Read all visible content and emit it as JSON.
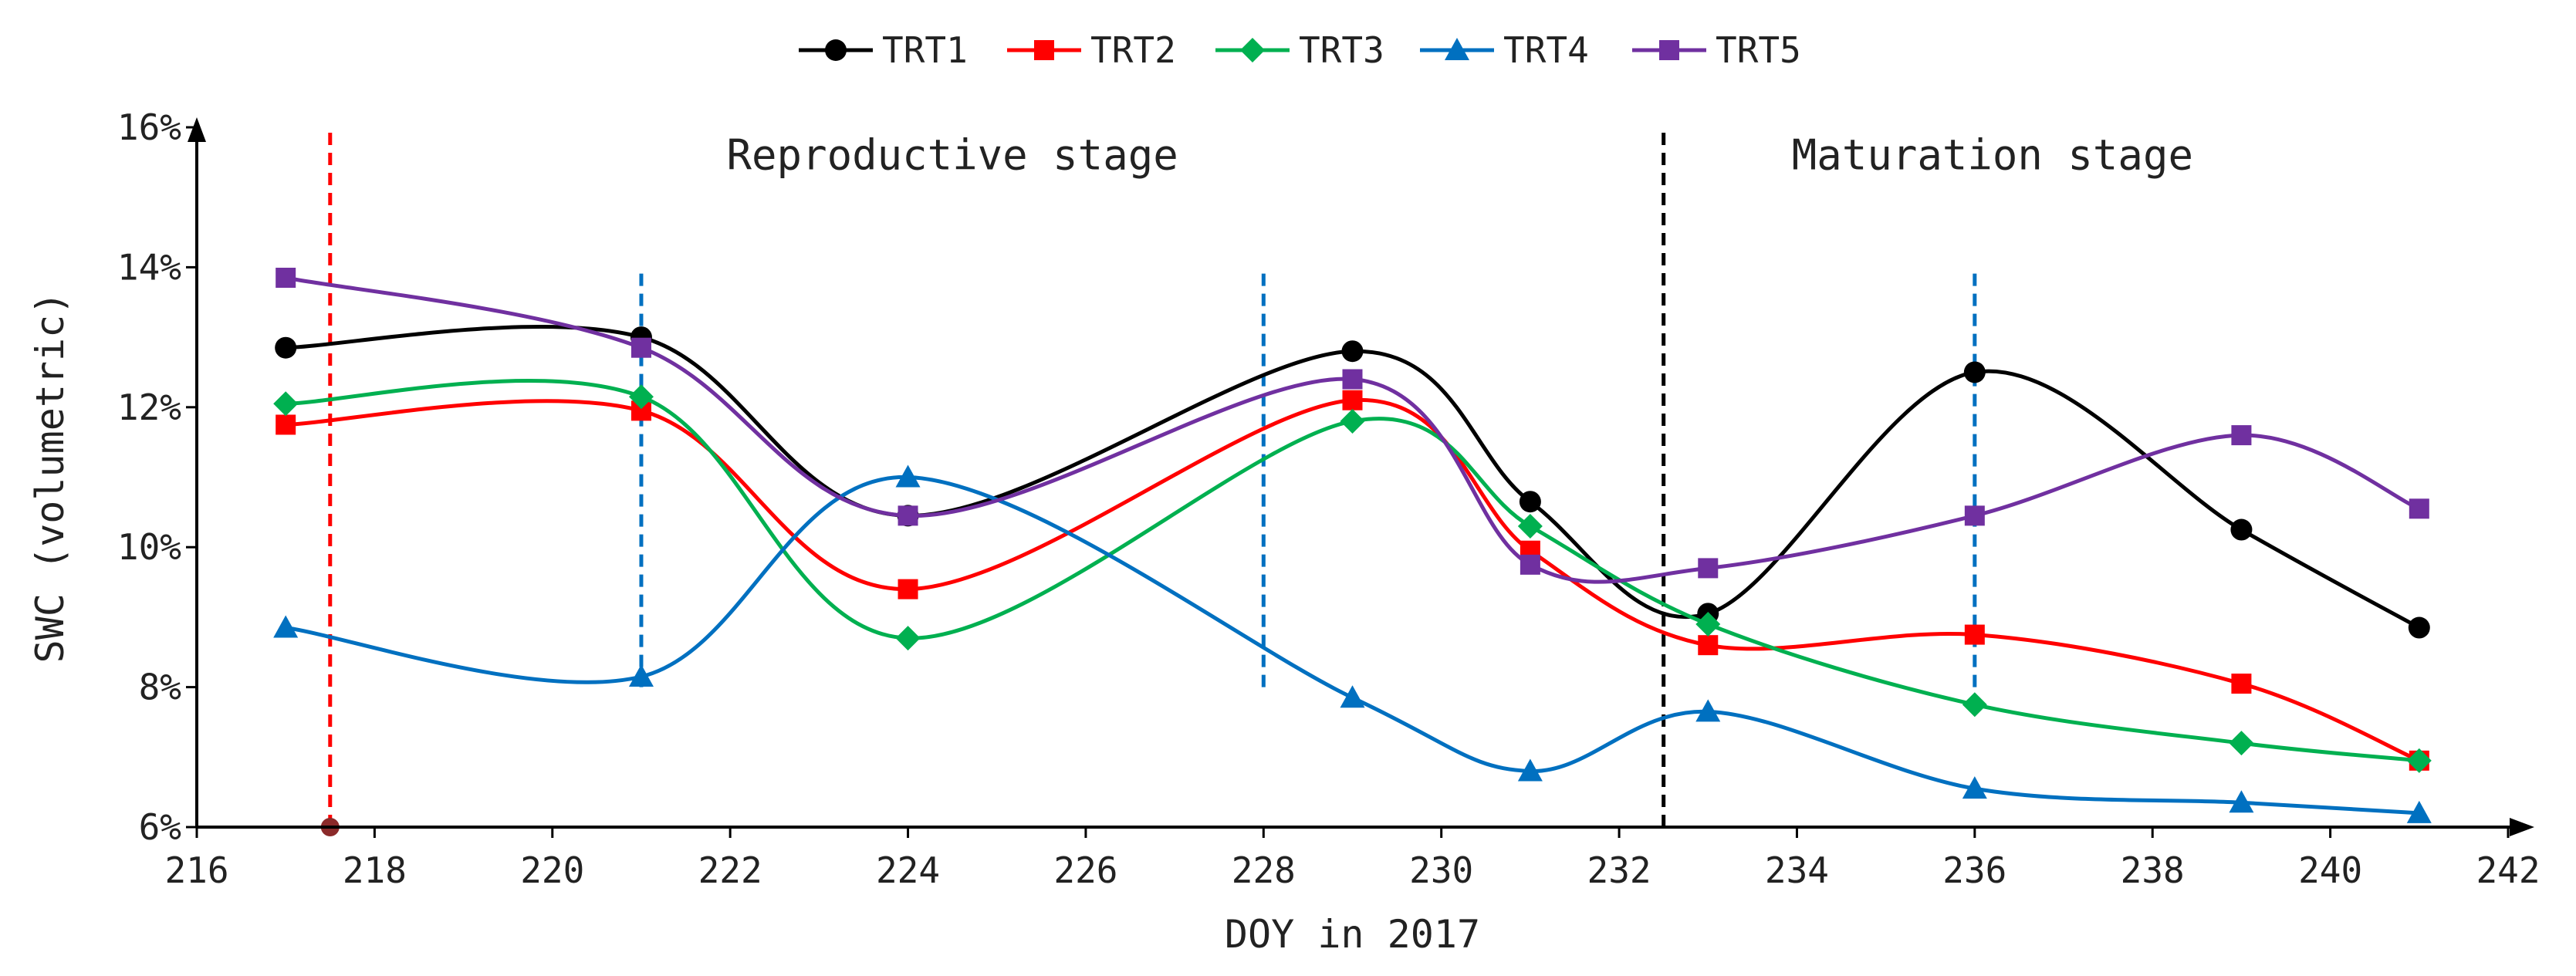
{
  "chart_data": {
    "type": "line",
    "title": "",
    "xlabel": "DOY in 2017",
    "ylabel": "SWC (volumetric)",
    "xlim": [
      216,
      242
    ],
    "ylim": [
      6,
      16
    ],
    "x_ticks": [
      216,
      218,
      220,
      222,
      224,
      226,
      228,
      230,
      232,
      234,
      236,
      238,
      240,
      242
    ],
    "x_tick_labels": [
      "216",
      "218",
      "220",
      "222",
      "224",
      "226",
      "228",
      "230",
      "232",
      "234",
      "236",
      "238",
      "240",
      "242"
    ],
    "y_ticks": [
      6,
      8,
      10,
      12,
      14,
      16
    ],
    "y_tick_labels": [
      "6%",
      "8%",
      "10%",
      "12%",
      "14%",
      "16%"
    ],
    "grid": false,
    "legend_position": "top-center",
    "x": [
      217,
      221,
      224,
      229,
      231,
      233,
      236,
      239,
      241
    ],
    "series": [
      {
        "name": "TRT1",
        "color": "#000000",
        "marker": "circle",
        "values": [
          12.85,
          13.0,
          10.45,
          12.8,
          10.65,
          9.05,
          12.5,
          10.25,
          8.85
        ]
      },
      {
        "name": "TRT2",
        "color": "#ff0000",
        "marker": "square",
        "values": [
          11.75,
          11.95,
          9.4,
          12.1,
          9.95,
          8.6,
          8.75,
          8.05,
          6.95
        ]
      },
      {
        "name": "TRT3",
        "color": "#00b050",
        "marker": "diamond",
        "values": [
          12.05,
          12.15,
          8.7,
          11.8,
          10.3,
          8.9,
          7.75,
          7.2,
          6.95
        ]
      },
      {
        "name": "TRT4",
        "color": "#0070c0",
        "marker": "triangle",
        "values": [
          8.85,
          8.15,
          11.0,
          7.85,
          6.8,
          7.65,
          6.55,
          6.35,
          6.2
        ]
      },
      {
        "name": "TRT5",
        "color": "#7030a0",
        "marker": "square",
        "values": [
          13.85,
          12.85,
          10.45,
          12.4,
          9.75,
          9.7,
          10.45,
          11.6,
          10.55
        ]
      }
    ],
    "annotations": [
      {
        "type": "text",
        "text": "Reproductive stage",
        "x": 224.5,
        "y": 15.6
      },
      {
        "type": "text",
        "text": "Maturation stage",
        "x": 236.2,
        "y": 15.6
      }
    ],
    "reference_lines": [
      {
        "x": 217.5,
        "y_range": [
          6,
          16
        ],
        "color": "#ff0000",
        "style": "dashed"
      },
      {
        "x": 221,
        "y_range": [
          8,
          14
        ],
        "color": "#0070c0",
        "style": "dashed"
      },
      {
        "x": 228,
        "y_range": [
          8,
          14
        ],
        "color": "#0070c0",
        "style": "dashed"
      },
      {
        "x": 232.5,
        "y_range": [
          6,
          16
        ],
        "color": "#000000",
        "style": "dashed"
      },
      {
        "x": 236,
        "y_range": [
          8,
          14
        ],
        "color": "#0070c0",
        "style": "dashed"
      }
    ],
    "point_markers": [
      {
        "x": 217.5,
        "y": 6,
        "color": "#8b2a2a"
      }
    ]
  }
}
